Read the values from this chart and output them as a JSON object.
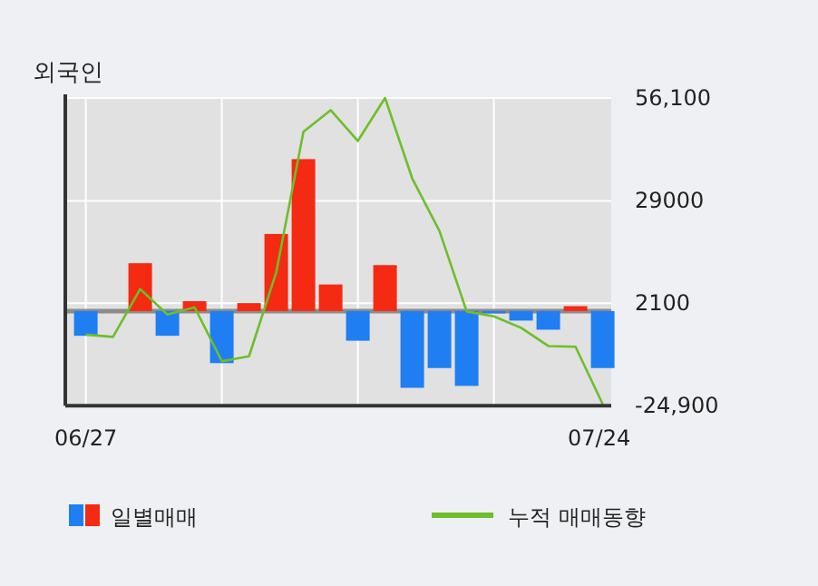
{
  "chart_data": {
    "type": "bar",
    "title": "외국인",
    "categories": [
      "06/27",
      null,
      null,
      null,
      null,
      null,
      null,
      null,
      null,
      null,
      null,
      null,
      null,
      null,
      null,
      null,
      null,
      null,
      null,
      "07/24"
    ],
    "series": [
      {
        "name": "일별매매",
        "colors": [
          "#1f7ef2",
          "#1f7ef2",
          "#f52a12",
          "#1f7ef2",
          "#f52a12",
          "#1f7ef2",
          "#f52a12",
          "#f52a12",
          "#f52a12",
          "#f52a12",
          "#1f7ef2",
          "#f52a12",
          "#1f7ef2",
          "#1f7ef2",
          "#1f7ef2",
          "#1f7ef2",
          "#1f7ef2",
          "#1f7ef2",
          "#f52a12",
          "#1f7ef2"
        ],
        "values": [
          -6500,
          0,
          12600,
          -6500,
          2600,
          -13700,
          2100,
          20300,
          40000,
          7000,
          -7800,
          12100,
          -20200,
          -15000,
          -19700,
          -600,
          -2500,
          -4900,
          1300,
          -15000
        ]
      },
      {
        "name": "누적 매매동향",
        "type": "line",
        "color": "#6cbf2a",
        "values": [
          -6200,
          -6800,
          5800,
          -900,
          1000,
          -13200,
          -11900,
          10200,
          47200,
          52900,
          44800,
          56100,
          34900,
          21100,
          -100,
          -1400,
          -4400,
          -9200,
          -9400,
          -24500
        ]
      }
    ],
    "ylim": [
      -24900,
      56100
    ],
    "yticks": [
      {
        "value": 56100,
        "label": "56,100"
      },
      29000,
      2100,
      {
        "value": -24900,
        "label": "-24,900"
      }
    ],
    "grid": true,
    "legend": "bottom"
  }
}
